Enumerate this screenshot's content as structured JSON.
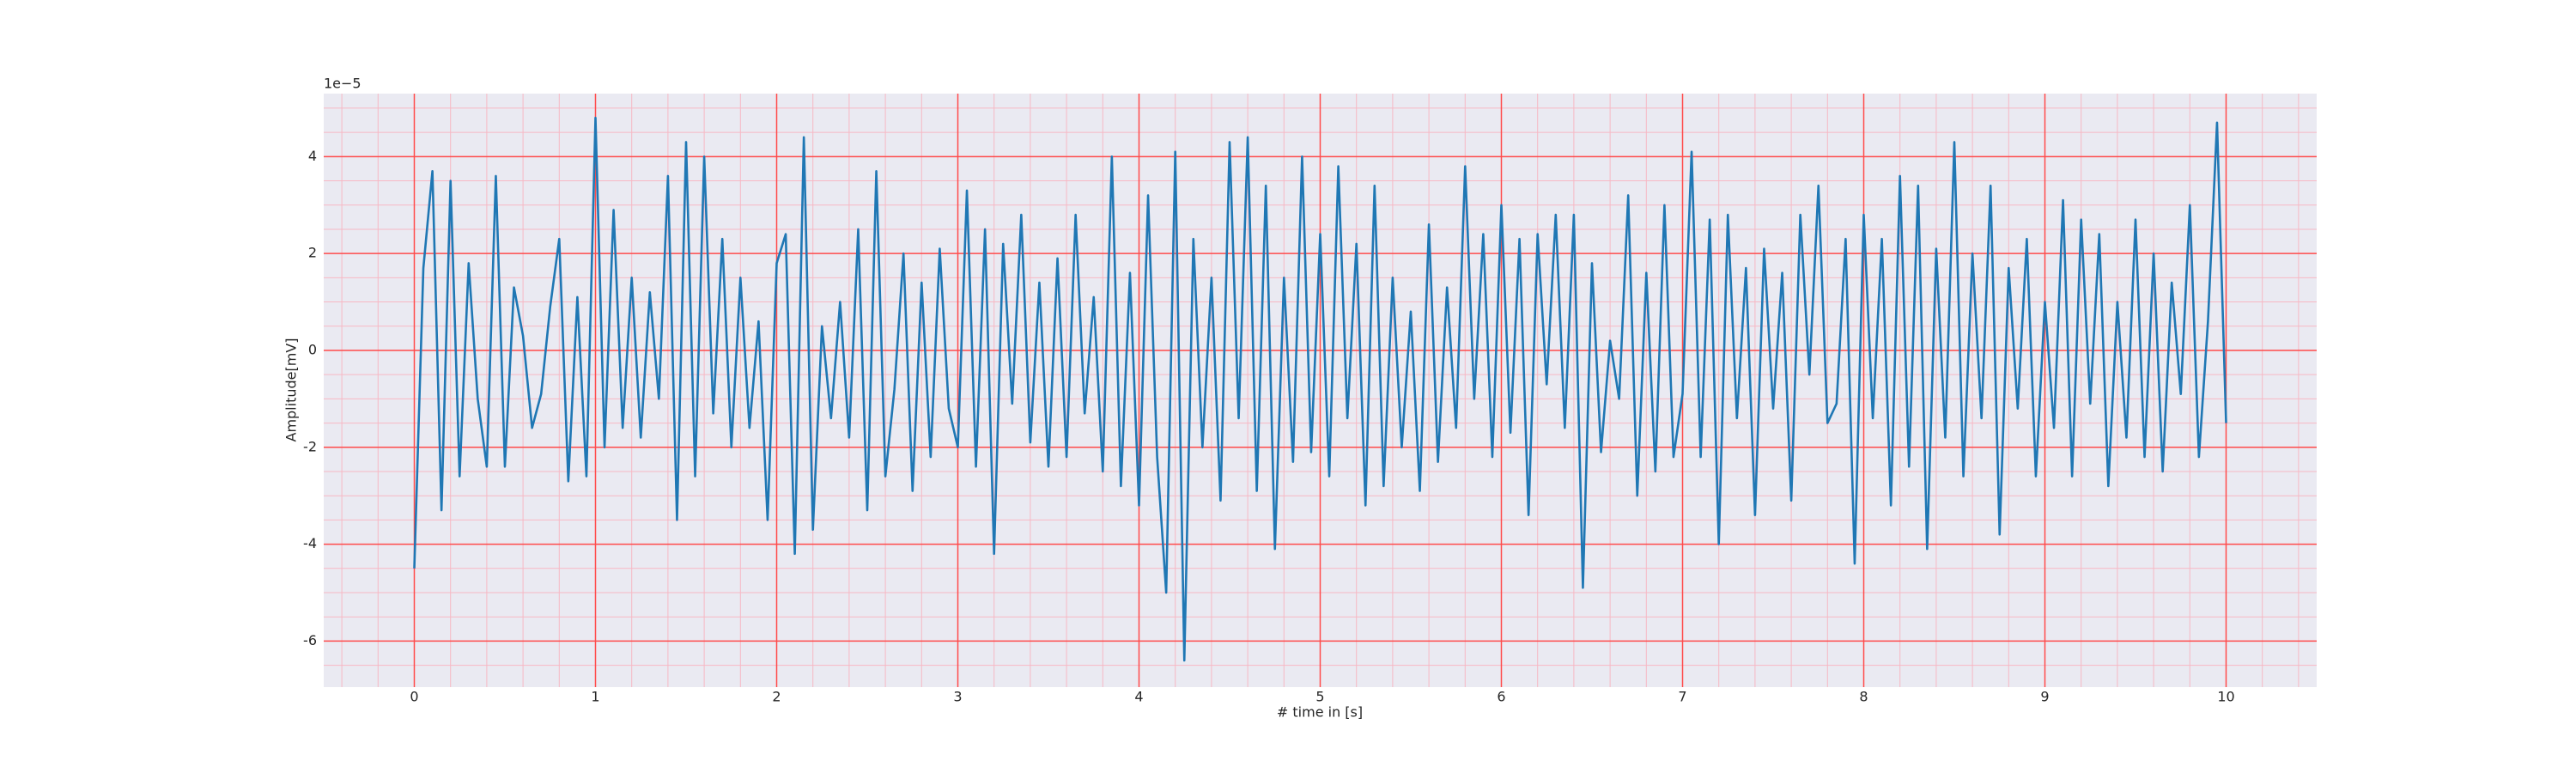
{
  "chart_data": {
    "type": "line",
    "xlabel": "# time in [s]",
    "ylabel": "Amplitude[mV]",
    "y_offset_label": "1e−5",
    "color": "#1f77b4",
    "grid": true,
    "major_grid_color": "#ff4b4b",
    "minor_grid_color": "#f7b8c4",
    "xlim": [
      -0.5,
      10.5
    ],
    "ylim": [
      -6.95,
      5.3
    ],
    "xticks": [
      0,
      1,
      2,
      3,
      4,
      5,
      6,
      7,
      8,
      9,
      10
    ],
    "yticks": [
      -6,
      -4,
      -2,
      0,
      2,
      4
    ],
    "minor_xticks": [
      -0.4,
      -0.2,
      0.2,
      0.4,
      0.6,
      0.8,
      1.2,
      1.4,
      1.6,
      1.8,
      2.2,
      2.4,
      2.6,
      2.8,
      3.2,
      3.4,
      3.6,
      3.8,
      4.2,
      4.4,
      4.6,
      4.8,
      5.2,
      5.4,
      5.6,
      5.8,
      6.2,
      6.4,
      6.6,
      6.8,
      7.2,
      7.4,
      7.6,
      7.8,
      8.2,
      8.4,
      8.6,
      8.8,
      9.2,
      9.4,
      9.6,
      9.8,
      10.2,
      10.4
    ],
    "minor_yticks": [
      -6.5,
      -5.5,
      -5,
      -4.5,
      -3.5,
      -3,
      -2.5,
      -1.5,
      -1,
      -0.5,
      0.5,
      1,
      1.5,
      2.5,
      3,
      3.5,
      4.5,
      5
    ],
    "x": [
      0,
      0.05,
      0.1,
      0.15,
      0.2,
      0.25,
      0.3,
      0.35,
      0.4,
      0.45,
      0.5,
      0.55,
      0.6,
      0.65,
      0.7,
      0.75,
      0.8,
      0.85,
      0.9,
      0.95,
      1,
      1.05,
      1.1,
      1.15,
      1.2,
      1.25,
      1.3,
      1.35,
      1.4,
      1.45,
      1.5,
      1.55,
      1.6,
      1.65,
      1.7,
      1.75,
      1.8,
      1.85,
      1.9,
      1.95,
      2,
      2.05,
      2.1,
      2.15,
      2.2,
      2.25,
      2.3,
      2.35,
      2.4,
      2.45,
      2.5,
      2.55,
      2.6,
      2.65,
      2.7,
      2.75,
      2.8,
      2.85,
      2.9,
      2.95,
      3,
      3.05,
      3.1,
      3.15,
      3.2,
      3.25,
      3.3,
      3.35,
      3.4,
      3.45,
      3.5,
      3.55,
      3.6,
      3.65,
      3.7,
      3.75,
      3.8,
      3.85,
      3.9,
      3.95,
      4,
      4.05,
      4.1,
      4.15,
      4.2,
      4.25,
      4.3,
      4.35,
      4.4,
      4.45,
      4.5,
      4.55,
      4.6,
      4.65,
      4.7,
      4.75,
      4.8,
      4.85,
      4.9,
      4.95,
      5,
      5.05,
      5.1,
      5.15,
      5.2,
      5.25,
      5.3,
      5.35,
      5.4,
      5.45,
      5.5,
      5.55,
      5.6,
      5.65,
      5.7,
      5.75,
      5.8,
      5.85,
      5.9,
      5.95,
      6,
      6.05,
      6.1,
      6.15,
      6.2,
      6.25,
      6.3,
      6.35,
      6.4,
      6.45,
      6.5,
      6.55,
      6.6,
      6.65,
      6.7,
      6.75,
      6.8,
      6.85,
      6.9,
      6.95,
      7,
      7.05,
      7.1,
      7.15,
      7.2,
      7.25,
      7.3,
      7.35,
      7.4,
      7.45,
      7.5,
      7.55,
      7.6,
      7.65,
      7.7,
      7.75,
      7.8,
      7.85,
      7.9,
      7.95,
      8,
      8.05,
      8.1,
      8.15,
      8.2,
      8.25,
      8.3,
      8.35,
      8.4,
      8.45,
      8.5,
      8.55,
      8.6,
      8.65,
      8.7,
      8.75,
      8.8,
      8.85,
      8.9,
      8.95,
      9,
      9.05,
      9.1,
      9.15,
      9.2,
      9.25,
      9.3,
      9.35,
      9.4,
      9.45,
      9.5,
      9.55,
      9.6,
      9.65,
      9.7,
      9.75,
      9.8,
      9.85,
      9.9,
      9.95,
      10
    ],
    "values": [
      -4.5,
      1.7,
      3.7,
      -3.3,
      3.5,
      -2.6,
      1.8,
      -1.0,
      -2.4,
      3.6,
      -2.4,
      1.3,
      0.3,
      -1.6,
      -0.9,
      0.9,
      2.3,
      -2.7,
      1.1,
      -2.6,
      4.8,
      -2.0,
      2.9,
      -1.6,
      1.5,
      -1.8,
      1.2,
      -1.0,
      3.6,
      -3.5,
      4.3,
      -2.6,
      4.0,
      -1.3,
      2.3,
      -2.0,
      1.5,
      -1.6,
      0.6,
      -3.5,
      1.8,
      2.4,
      -4.2,
      4.4,
      -3.7,
      0.5,
      -1.4,
      1.0,
      -1.8,
      2.5,
      -3.3,
      3.7,
      -2.6,
      -0.8,
      2.0,
      -2.9,
      1.4,
      -2.2,
      2.1,
      -1.2,
      -2.0,
      3.3,
      -2.4,
      2.5,
      -4.2,
      2.2,
      -1.1,
      2.8,
      -1.9,
      1.4,
      -2.4,
      1.9,
      -2.2,
      2.8,
      -1.3,
      1.1,
      -2.5,
      4.0,
      -2.8,
      1.6,
      -3.2,
      3.2,
      -2.2,
      -5.0,
      4.1,
      -6.4,
      2.3,
      -2.0,
      1.5,
      -3.1,
      4.3,
      -1.4,
      4.4,
      -2.9,
      3.4,
      -4.1,
      1.5,
      -2.3,
      4.0,
      -2.1,
      2.4,
      -2.6,
      3.8,
      -1.4,
      2.2,
      -3.2,
      3.4,
      -2.8,
      1.5,
      -2.0,
      0.8,
      -2.9,
      2.6,
      -2.3,
      1.3,
      -1.6,
      3.8,
      -1.0,
      2.4,
      -2.2,
      3.0,
      -1.7,
      2.3,
      -3.4,
      2.4,
      -0.7,
      2.8,
      -1.6,
      2.8,
      -4.9,
      1.8,
      -2.1,
      0.2,
      -1.0,
      3.2,
      -3.0,
      1.6,
      -2.5,
      3.0,
      -2.2,
      -0.9,
      4.1,
      -2.2,
      2.7,
      -4.0,
      2.8,
      -1.4,
      1.7,
      -3.4,
      2.1,
      -1.2,
      1.6,
      -3.1,
      2.8,
      -0.5,
      3.4,
      -1.5,
      -1.1,
      2.3,
      -4.4,
      2.8,
      -1.4,
      2.3,
      -3.2,
      3.6,
      -2.4,
      3.4,
      -4.1,
      2.1,
      -1.8,
      4.3,
      -2.6,
      2.0,
      -1.4,
      3.4,
      -3.8,
      1.7,
      -1.2,
      2.3,
      -2.6,
      1.0,
      -1.6,
      3.1,
      -2.6,
      2.7,
      -1.1,
      2.4,
      -2.8,
      1.0,
      -1.8,
      2.7,
      -2.2,
      2.0,
      -2.5,
      1.4,
      -0.9,
      3.0,
      -2.2,
      0.6,
      4.7,
      -1.5
    ]
  }
}
